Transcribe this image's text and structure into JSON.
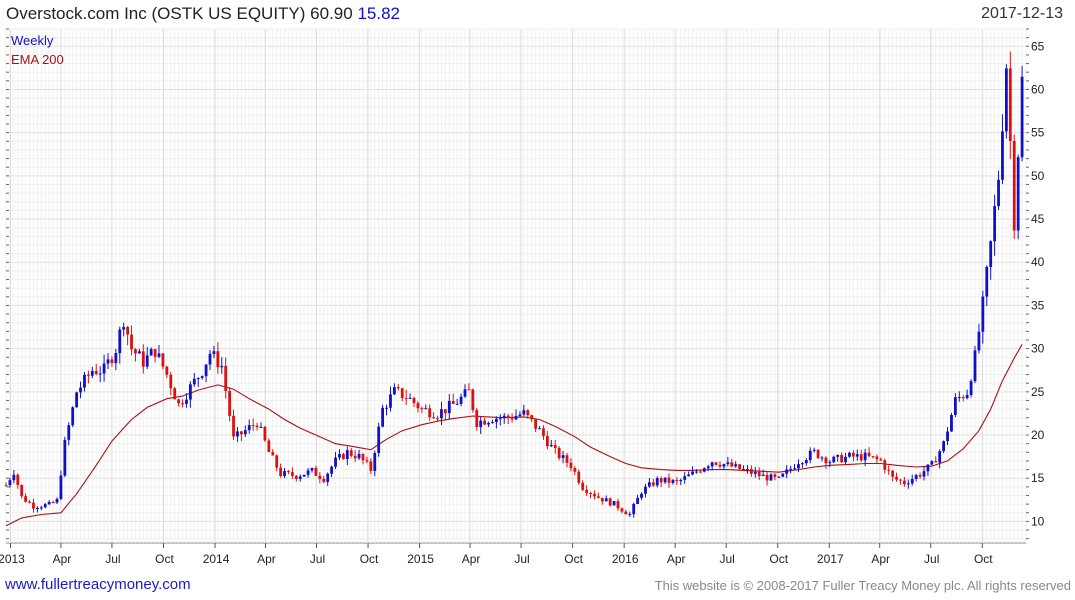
{
  "header": {
    "title": "Overstock.com Inc (OSTK US EQUITY) 60.90",
    "change": "15.82",
    "date": "2017-12-13"
  },
  "footer": {
    "site": "www.fullertreacymoney.com",
    "copyright": "This website is © 2008-2017 Fuller Treacy Money plc. All rights reserved"
  },
  "colors": {
    "up": "#1010c8",
    "down": "#dd1010",
    "ema": "#aa1111",
    "grid": "#e4e4e4",
    "axis": "#666666"
  },
  "chart_data": {
    "type": "candlestick",
    "title": "Overstock.com Inc (OSTK US EQUITY)",
    "legend": [
      {
        "label": "Weekly",
        "color": "#1010c8"
      },
      {
        "label": "EMA 200",
        "color": "#aa1111"
      }
    ],
    "legend_position": "top-left",
    "grid": true,
    "y_axis_position": "right",
    "ylim": [
      7.5,
      67
    ],
    "y_ticks": [
      10,
      15,
      20,
      25,
      30,
      35,
      40,
      45,
      50,
      55,
      60,
      65
    ],
    "x_range": [
      "2012-12-24",
      "2017-12-18"
    ],
    "x_ticks": [
      {
        "label": "2013",
        "date": "2013-01-01"
      },
      {
        "label": "Apr",
        "date": "2013-04-01"
      },
      {
        "label": "Jul",
        "date": "2013-07-01"
      },
      {
        "label": "Oct",
        "date": "2013-10-01"
      },
      {
        "label": "2014",
        "date": "2014-01-01"
      },
      {
        "label": "Apr",
        "date": "2014-04-01"
      },
      {
        "label": "Jul",
        "date": "2014-07-01"
      },
      {
        "label": "Oct",
        "date": "2014-10-01"
      },
      {
        "label": "2015",
        "date": "2015-01-01"
      },
      {
        "label": "Apr",
        "date": "2015-04-01"
      },
      {
        "label": "Jul",
        "date": "2015-07-01"
      },
      {
        "label": "Oct",
        "date": "2015-10-01"
      },
      {
        "label": "2016",
        "date": "2016-01-01"
      },
      {
        "label": "Apr",
        "date": "2016-04-01"
      },
      {
        "label": "Jul",
        "date": "2016-07-01"
      },
      {
        "label": "Oct",
        "date": "2016-10-01"
      },
      {
        "label": "2017",
        "date": "2017-01-01"
      },
      {
        "label": "Apr",
        "date": "2017-04-01"
      },
      {
        "label": "Jul",
        "date": "2017-07-01"
      },
      {
        "label": "Oct",
        "date": "2017-10-01"
      }
    ],
    "price_path": [
      [
        "2012-12-24",
        14.2
      ],
      [
        "2013-01-07",
        15.8
      ],
      [
        "2013-01-21",
        12.8
      ],
      [
        "2013-02-11",
        11.8
      ],
      [
        "2013-03-11",
        11.9
      ],
      [
        "2013-03-25",
        12.4
      ],
      [
        "2013-04-08",
        19.0
      ],
      [
        "2013-04-29",
        25.0
      ],
      [
        "2013-05-27",
        27.5
      ],
      [
        "2013-06-17",
        27.5
      ],
      [
        "2013-07-08",
        30.0
      ],
      [
        "2013-07-22",
        33.5
      ],
      [
        "2013-08-05",
        30.0
      ],
      [
        "2013-08-26",
        28.5
      ],
      [
        "2013-09-16",
        29.8
      ],
      [
        "2013-10-07",
        27.0
      ],
      [
        "2013-10-28",
        23.5
      ],
      [
        "2013-11-18",
        25.5
      ],
      [
        "2013-12-09",
        27.5
      ],
      [
        "2013-12-23",
        29.5
      ],
      [
        "2014-01-13",
        28.0
      ],
      [
        "2014-02-03",
        19.5
      ],
      [
        "2014-02-24",
        20.5
      ],
      [
        "2014-03-17",
        21.5
      ],
      [
        "2014-04-07",
        18.0
      ],
      [
        "2014-04-28",
        15.5
      ],
      [
        "2014-05-26",
        15.3
      ],
      [
        "2014-06-23",
        15.8
      ],
      [
        "2014-07-14",
        15.0
      ],
      [
        "2014-08-04",
        17.0
      ],
      [
        "2014-08-25",
        18.0
      ],
      [
        "2014-09-15",
        17.5
      ],
      [
        "2014-10-06",
        16.0
      ],
      [
        "2014-10-27",
        23.0
      ],
      [
        "2014-11-17",
        25.0
      ],
      [
        "2014-12-08",
        24.5
      ],
      [
        "2015-01-05",
        23.0
      ],
      [
        "2015-02-02",
        22.5
      ],
      [
        "2015-03-02",
        23.5
      ],
      [
        "2015-03-30",
        25.0
      ],
      [
        "2015-04-13",
        21.5
      ],
      [
        "2015-05-11",
        22.0
      ],
      [
        "2015-06-08",
        22.0
      ],
      [
        "2015-07-06",
        22.5
      ],
      [
        "2015-08-03",
        20.5
      ],
      [
        "2015-08-31",
        18.0
      ],
      [
        "2015-09-28",
        16.5
      ],
      [
        "2015-10-19",
        14.0
      ],
      [
        "2015-11-16",
        12.8
      ],
      [
        "2015-12-14",
        12.0
      ],
      [
        "2016-01-11",
        10.8
      ],
      [
        "2016-02-01",
        13.5
      ],
      [
        "2016-03-01",
        14.8
      ],
      [
        "2016-04-04",
        14.5
      ],
      [
        "2016-05-02",
        15.5
      ],
      [
        "2016-06-06",
        17.0
      ],
      [
        "2016-07-04",
        16.5
      ],
      [
        "2016-08-08",
        15.8
      ],
      [
        "2016-09-05",
        15.2
      ],
      [
        "2016-10-03",
        14.8
      ],
      [
        "2016-11-07",
        17.0
      ],
      [
        "2016-12-05",
        18.0
      ],
      [
        "2017-01-02",
        17.0
      ],
      [
        "2017-02-06",
        17.5
      ],
      [
        "2017-03-06",
        17.5
      ],
      [
        "2017-04-03",
        17.0
      ],
      [
        "2017-04-24",
        15.0
      ],
      [
        "2017-05-15",
        14.5
      ],
      [
        "2017-06-12",
        15.5
      ],
      [
        "2017-07-03",
        16.5
      ],
      [
        "2017-07-24",
        19.0
      ],
      [
        "2017-08-14",
        24.0
      ],
      [
        "2017-09-04",
        25.0
      ],
      [
        "2017-09-18",
        29.0
      ],
      [
        "2017-10-02",
        35.0
      ],
      [
        "2017-10-16",
        42.0
      ],
      [
        "2017-10-30",
        50.0
      ],
      [
        "2017-11-13",
        63.0
      ],
      [
        "2017-11-27",
        45.0
      ],
      [
        "2017-12-11",
        60.9
      ]
    ],
    "ema_path": [
      [
        "2012-12-24",
        9.5
      ],
      [
        "2013-01-21",
        10.4
      ],
      [
        "2013-02-25",
        10.8
      ],
      [
        "2013-04-01",
        11.0
      ],
      [
        "2013-04-29",
        13.2
      ],
      [
        "2013-06-03",
        16.5
      ],
      [
        "2013-07-01",
        19.3
      ],
      [
        "2013-08-05",
        21.8
      ],
      [
        "2013-09-02",
        23.2
      ],
      [
        "2013-10-07",
        24.2
      ],
      [
        "2013-11-04",
        24.5
      ],
      [
        "2013-12-02",
        25.2
      ],
      [
        "2014-01-06",
        25.8
      ],
      [
        "2014-02-03",
        25.3
      ],
      [
        "2014-03-03",
        24.2
      ],
      [
        "2014-04-07",
        23.0
      ],
      [
        "2014-05-05",
        21.8
      ],
      [
        "2014-06-02",
        20.8
      ],
      [
        "2014-07-07",
        19.8
      ],
      [
        "2014-08-04",
        19.0
      ],
      [
        "2014-09-01",
        18.7
      ],
      [
        "2014-10-06",
        18.3
      ],
      [
        "2014-11-03",
        19.5
      ],
      [
        "2014-12-01",
        20.5
      ],
      [
        "2015-01-05",
        21.2
      ],
      [
        "2015-02-02",
        21.6
      ],
      [
        "2015-03-02",
        21.9
      ],
      [
        "2015-04-06",
        22.2
      ],
      [
        "2015-05-04",
        22.1
      ],
      [
        "2015-06-01",
        22.0
      ],
      [
        "2015-07-06",
        22.1
      ],
      [
        "2015-08-03",
        21.8
      ],
      [
        "2015-08-31",
        21.0
      ],
      [
        "2015-10-05",
        19.8
      ],
      [
        "2015-11-02",
        18.6
      ],
      [
        "2015-12-07",
        17.5
      ],
      [
        "2016-01-04",
        16.7
      ],
      [
        "2016-02-01",
        16.2
      ],
      [
        "2016-03-07",
        16.0
      ],
      [
        "2016-04-04",
        15.9
      ],
      [
        "2016-05-02",
        15.9
      ],
      [
        "2016-06-06",
        16.0
      ],
      [
        "2016-07-04",
        16.0
      ],
      [
        "2016-08-01",
        15.9
      ],
      [
        "2016-09-05",
        15.8
      ],
      [
        "2016-10-03",
        15.7
      ],
      [
        "2016-11-07",
        16.0
      ],
      [
        "2016-12-05",
        16.3
      ],
      [
        "2017-01-02",
        16.5
      ],
      [
        "2017-02-06",
        16.6
      ],
      [
        "2017-03-06",
        16.7
      ],
      [
        "2017-04-03",
        16.7
      ],
      [
        "2017-05-01",
        16.5
      ],
      [
        "2017-06-05",
        16.3
      ],
      [
        "2017-07-03",
        16.4
      ],
      [
        "2017-07-31",
        17.0
      ],
      [
        "2017-08-28",
        18.4
      ],
      [
        "2017-09-25",
        20.5
      ],
      [
        "2017-10-16",
        23.0
      ],
      [
        "2017-11-06",
        26.3
      ],
      [
        "2017-11-27",
        28.9
      ],
      [
        "2017-12-11",
        30.5
      ]
    ]
  }
}
